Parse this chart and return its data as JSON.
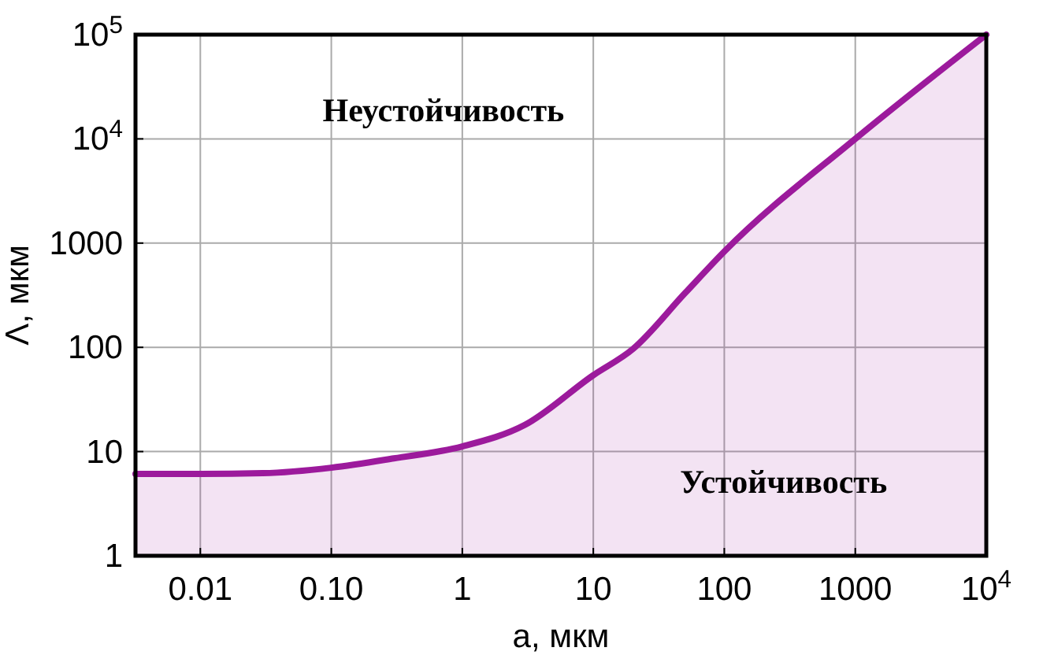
{
  "chart_data": {
    "type": "area",
    "xlabel": "a, мкм",
    "ylabel": "Λ, мкм",
    "log": "xy",
    "grid": true,
    "xlim": [
      0.0032,
      10000
    ],
    "ylim": [
      1,
      100000
    ],
    "xticks": [
      0.01,
      {
        "value": 0.1,
        "label": "0.10"
      },
      1,
      10,
      100,
      1000,
      {
        "value": 10000,
        "label": "10$^{4}$"
      }
    ],
    "yticks": [
      1,
      10,
      100,
      1000,
      {
        "value": 10000,
        "label": "10$^{4}$"
      },
      {
        "value": 100000,
        "label": "10$^{5}$"
      }
    ],
    "series": [
      {
        "color": "#9c1a9c",
        "x": [
          0.0032,
          0.01,
          0.03,
          0.1,
          0.3,
          1,
          3,
          10,
          20,
          50,
          100,
          1000,
          10000
        ],
        "values": [
          6.1,
          6.1,
          6.2,
          7,
          8.6,
          11.2,
          18,
          54,
          96,
          330,
          830,
          10000,
          100000
        ]
      }
    ],
    "annotations": [
      "Неустойчивость",
      "Устойчивость"
    ]
  }
}
